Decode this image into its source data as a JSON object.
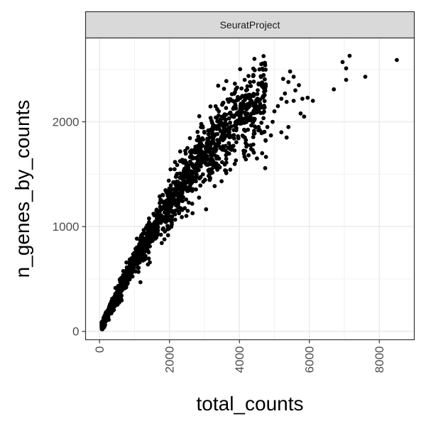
{
  "chart_data": {
    "type": "scatter",
    "facet_label": "SeuratProject",
    "xlabel": "total_counts",
    "ylabel": "n_genes_by_counts",
    "xlim": [
      -400,
      9000
    ],
    "ylim": [
      -80,
      2800
    ],
    "x_ticks": [
      0,
      2000,
      4000,
      6000,
      8000
    ],
    "y_ticks": [
      0,
      1000,
      2000
    ],
    "x_tick_labels": [
      "0",
      "2000",
      "4000",
      "6000",
      "8000"
    ],
    "y_tick_labels": [
      "0",
      "1000",
      "2000"
    ],
    "grid": true,
    "point_color": "#000000",
    "outliers": [
      {
        "x": 5450,
        "y": 2480
      },
      {
        "x": 5550,
        "y": 2430
      },
      {
        "x": 5250,
        "y": 2410
      },
      {
        "x": 5400,
        "y": 2380
      },
      {
        "x": 5700,
        "y": 2350
      },
      {
        "x": 5600,
        "y": 2300
      },
      {
        "x": 5800,
        "y": 2220
      },
      {
        "x": 5950,
        "y": 2230
      },
      {
        "x": 6100,
        "y": 2200
      },
      {
        "x": 5750,
        "y": 2080
      },
      {
        "x": 5850,
        "y": 2050
      },
      {
        "x": 5300,
        "y": 2270
      },
      {
        "x": 5200,
        "y": 2220
      },
      {
        "x": 5100,
        "y": 2150
      },
      {
        "x": 5350,
        "y": 2190
      },
      {
        "x": 5000,
        "y": 2100
      },
      {
        "x": 5550,
        "y": 2200
      },
      {
        "x": 4950,
        "y": 2000
      },
      {
        "x": 5400,
        "y": 1950
      },
      {
        "x": 4800,
        "y": 1950
      },
      {
        "x": 5200,
        "y": 1900
      },
      {
        "x": 5350,
        "y": 1850
      },
      {
        "x": 4750,
        "y": 1820
      },
      {
        "x": 4900,
        "y": 1870
      },
      {
        "x": 4500,
        "y": 1650
      },
      {
        "x": 4650,
        "y": 1700
      },
      {
        "x": 4550,
        "y": 1950
      },
      {
        "x": 7150,
        "y": 2630
      },
      {
        "x": 6950,
        "y": 2570
      },
      {
        "x": 7050,
        "y": 2510
      },
      {
        "x": 8500,
        "y": 2590
      },
      {
        "x": 7600,
        "y": 2430
      },
      {
        "x": 7050,
        "y": 2400
      },
      {
        "x": 6700,
        "y": 2310
      }
    ]
  }
}
